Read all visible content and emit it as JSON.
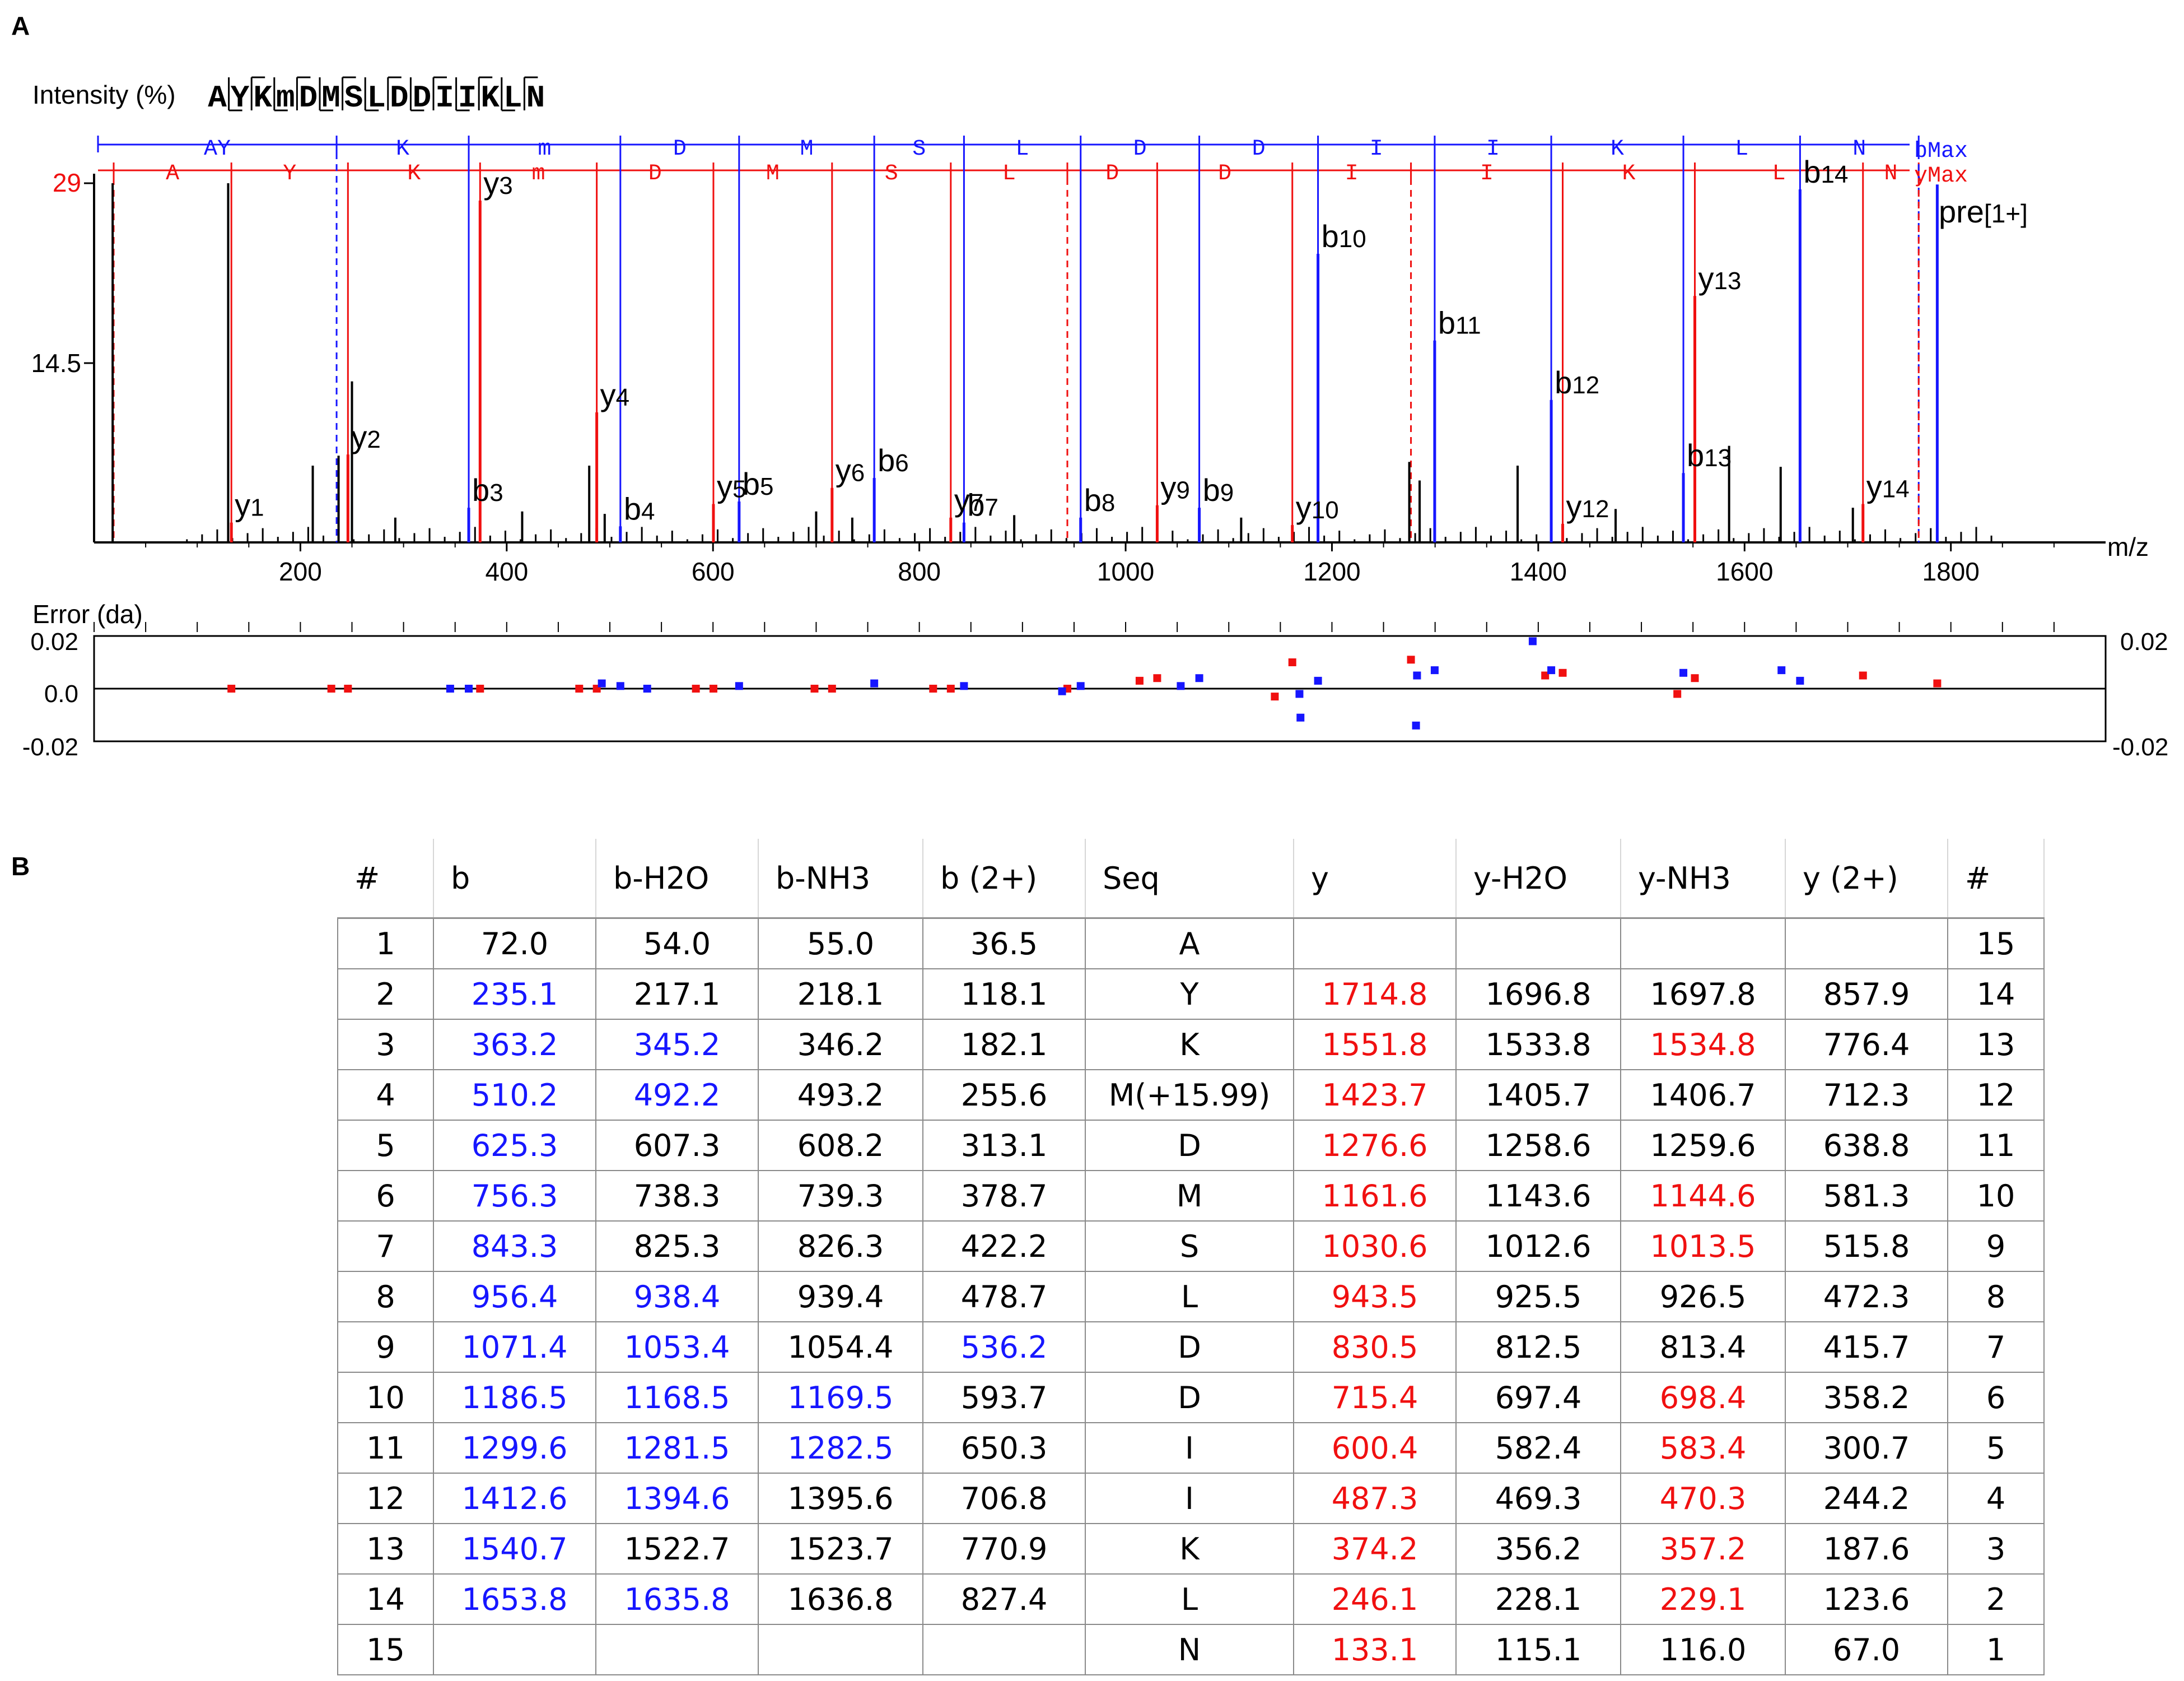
{
  "panel_labels": {
    "a": "A",
    "b": "B"
  },
  "spectrum": {
    "y_axis_title": "Intensity (%)",
    "y_ticks": [
      "29",
      "14.5"
    ],
    "x_axis_label": "m/z",
    "x_ticks": [
      "200",
      "400",
      "600",
      "800",
      "1000",
      "1200",
      "1400",
      "1600",
      "1800"
    ],
    "peptide_letters": [
      "A",
      "Y",
      "K",
      "m",
      "D",
      "M",
      "S",
      "L",
      "D",
      "D",
      "I",
      "I",
      "K",
      "L",
      "N"
    ],
    "b_ladder_label": "bMax",
    "y_ladder_label": "yMax",
    "b_ladder_residues": [
      "AY",
      "K",
      "m",
      "D",
      "M",
      "S",
      "L",
      "D",
      "D",
      "I",
      "I",
      "K",
      "L",
      "N"
    ],
    "y_ladder_residues": [
      "N",
      "L",
      "K",
      "I",
      "I",
      "D",
      "D",
      "L",
      "S",
      "M",
      "D",
      "m",
      "K",
      "Y",
      "A"
    ],
    "precursor_label": "pre",
    "precursor_charge": "[1+]",
    "colors": {
      "b_ion": "#1616ff",
      "y_ion": "#f01010",
      "unassigned": "#000000"
    }
  },
  "error_panel": {
    "title": "Error (da)",
    "y_ticks_left": [
      "0.02",
      "0.0",
      "-0.02"
    ],
    "y_ticks_right": [
      "0.02",
      "-0.02"
    ]
  },
  "chart_data": [
    {
      "type": "bar",
      "title": "",
      "xlabel": "m/z",
      "ylabel": "Intensity (%)",
      "xlim": [
        0,
        1950
      ],
      "ylim": [
        0,
        29
      ],
      "b_ion_positions": [
        235.1,
        363.2,
        510.2,
        625.3,
        756.3,
        843.3,
        956.4,
        1071.4,
        1186.5,
        1299.6,
        1412.6,
        1540.7,
        1653.8,
        1768.8
      ],
      "y_ion_positions": [
        1768.8,
        1714.8,
        1551.8,
        1423.7,
        1276.6,
        1161.6,
        1030.6,
        943.5,
        830.5,
        715.4,
        600.4,
        487.3,
        374.2,
        246.1,
        133.1,
        19.0
      ],
      "b_peaks": [
        {
          "label": "b",
          "sub": "3",
          "mz": 363.2,
          "intensity": 2.8
        },
        {
          "label": "b",
          "sub": "4",
          "mz": 510.2,
          "intensity": 1.3
        },
        {
          "label": "b",
          "sub": "5",
          "mz": 625.3,
          "intensity": 3.3
        },
        {
          "label": "b",
          "sub": "6",
          "mz": 756.3,
          "intensity": 5.2
        },
        {
          "label": "b",
          "sub": "7",
          "mz": 843.3,
          "intensity": 1.6
        },
        {
          "label": "b",
          "sub": "8",
          "mz": 956.4,
          "intensity": 2.0
        },
        {
          "label": "b",
          "sub": "9",
          "mz": 1071.4,
          "intensity": 2.8
        },
        {
          "label": "b",
          "sub": "10",
          "mz": 1186.5,
          "intensity": 23.3
        },
        {
          "label": "b",
          "sub": "11",
          "mz": 1299.6,
          "intensity": 16.3
        },
        {
          "label": "b",
          "sub": "12",
          "mz": 1412.6,
          "intensity": 11.5
        },
        {
          "label": "b",
          "sub": "13",
          "mz": 1540.7,
          "intensity": 5.6
        },
        {
          "label": "b",
          "sub": "14",
          "mz": 1653.8,
          "intensity": 28.5
        }
      ],
      "y_peaks": [
        {
          "label": "y",
          "sub": "1",
          "mz": 133.1,
          "intensity": 1.6
        },
        {
          "label": "y",
          "sub": "2",
          "mz": 246.1,
          "intensity": 7.1
        },
        {
          "label": "y",
          "sub": "3",
          "mz": 374.2,
          "intensity": 27.6
        },
        {
          "label": "y",
          "sub": "4",
          "mz": 487.3,
          "intensity": 10.5
        },
        {
          "label": "y",
          "sub": "5",
          "mz": 600.4,
          "intensity": 3.1
        },
        {
          "label": "y",
          "sub": "6",
          "mz": 715.4,
          "intensity": 4.4
        },
        {
          "label": "y",
          "sub": "7",
          "mz": 830.5,
          "intensity": 2.0
        },
        {
          "label": "y",
          "sub": "9",
          "mz": 1030.6,
          "intensity": 3.0
        },
        {
          "label": "y",
          "sub": "10",
          "mz": 1161.6,
          "intensity": 1.4
        },
        {
          "label": "y",
          "sub": "12",
          "mz": 1423.7,
          "intensity": 1.5
        },
        {
          "label": "y",
          "sub": "13",
          "mz": 1551.8,
          "intensity": 19.9
        },
        {
          "label": "y",
          "sub": "14",
          "mz": 1714.8,
          "intensity": 3.1
        }
      ],
      "precursor_peak": {
        "mz": 1786.8,
        "intensity": 28.9
      },
      "unassigned_peaks": [
        {
          "mz": 18,
          "intensity": 29
        },
        {
          "mz": 130,
          "intensity": 29
        },
        {
          "mz": 250,
          "intensity": 13.0
        },
        {
          "mz": 237,
          "intensity": 7.0
        },
        {
          "mz": 212,
          "intensity": 6.2
        },
        {
          "mz": 292,
          "intensity": 2.0
        },
        {
          "mz": 415,
          "intensity": 2.5
        },
        {
          "mz": 480,
          "intensity": 6.2
        },
        {
          "mz": 495,
          "intensity": 2.3
        },
        {
          "mz": 700,
          "intensity": 2.5
        },
        {
          "mz": 735,
          "intensity": 2.0
        },
        {
          "mz": 892,
          "intensity": 2.2
        },
        {
          "mz": 1112,
          "intensity": 2.0
        },
        {
          "mz": 1275,
          "intensity": 6.5
        },
        {
          "mz": 1285,
          "intensity": 5.0
        },
        {
          "mz": 1380,
          "intensity": 6.2
        },
        {
          "mz": 1475,
          "intensity": 2.7
        },
        {
          "mz": 1585,
          "intensity": 7.8
        },
        {
          "mz": 1635,
          "intensity": 6.1
        },
        {
          "mz": 1705,
          "intensity": 2.8
        }
      ]
    },
    {
      "type": "scatter",
      "title": "",
      "ylabel": "Error (da)",
      "xlim": [
        0,
        1950
      ],
      "ylim": [
        -0.02,
        0.02
      ],
      "series": [
        {
          "name": "",
          "color": "#f01010",
          "points": [
            [
              133.1,
              0.0
            ],
            [
              230,
              0.0
            ],
            [
              246.1,
              0.0
            ],
            [
              374.2,
              0.0
            ],
            [
              470.3,
              0.0
            ],
            [
              487.3,
              0.0
            ],
            [
              583.4,
              0.0
            ],
            [
              600.4,
              0.0
            ],
            [
              698.4,
              0.0
            ],
            [
              715.4,
              0.0
            ],
            [
              813.4,
              0.0
            ],
            [
              830.5,
              0.0
            ],
            [
              943.5,
              0.0
            ],
            [
              1013.5,
              0.003
            ],
            [
              1030.6,
              0.004
            ],
            [
              1144.6,
              -0.003
            ],
            [
              1161.6,
              0.01
            ],
            [
              1276.6,
              0.011
            ],
            [
              1406.7,
              0.005
            ],
            [
              1423.7,
              0.006
            ],
            [
              1534.8,
              -0.002
            ],
            [
              1551.8,
              0.004
            ],
            [
              1714.8,
              0.005
            ],
            [
              1786.8,
              0.002
            ]
          ]
        },
        {
          "name": "",
          "color": "#1616ff",
          "points": [
            [
              345.2,
              0.0
            ],
            [
              363.2,
              0.0
            ],
            [
              492.2,
              0.002
            ],
            [
              510.2,
              0.001
            ],
            [
              536.2,
              0.0
            ],
            [
              625.3,
              0.001
            ],
            [
              756.3,
              0.002
            ],
            [
              843.3,
              0.001
            ],
            [
              938.4,
              -0.001
            ],
            [
              956.4,
              0.001
            ],
            [
              1053.4,
              0.001
            ],
            [
              1071.4,
              0.004
            ],
            [
              1168.5,
              -0.002
            ],
            [
              1169.5,
              -0.011
            ],
            [
              1186.5,
              0.003
            ],
            [
              1281.5,
              -0.014
            ],
            [
              1282.5,
              0.005
            ],
            [
              1299.6,
              0.007
            ],
            [
              1394.6,
              0.018
            ],
            [
              1412.6,
              0.007
            ],
            [
              1540.7,
              0.006
            ],
            [
              1635.8,
              0.007
            ],
            [
              1653.8,
              0.003
            ]
          ]
        }
      ]
    },
    {
      "type": "table",
      "columns": [
        "#",
        "b",
        "b-H2O",
        "b-NH3",
        "b (2+)",
        "Seq",
        "y",
        "y-H2O",
        "y-NH3",
        "y (2+)",
        "#"
      ],
      "rows": [
        {
          "cells": [
            "1",
            "72.0",
            "54.0",
            "55.0",
            "36.5",
            "A",
            "",
            "",
            "",
            "",
            "15"
          ],
          "colors": [
            "k",
            "k",
            "k",
            "k",
            "k",
            "k",
            "k",
            "k",
            "k",
            "k",
            "k"
          ]
        },
        {
          "cells": [
            "2",
            "235.1",
            "217.1",
            "218.1",
            "118.1",
            "Y",
            "1714.8",
            "1696.8",
            "1697.8",
            "857.9",
            "14"
          ],
          "colors": [
            "k",
            "b",
            "k",
            "k",
            "k",
            "k",
            "r",
            "k",
            "k",
            "k",
            "k"
          ]
        },
        {
          "cells": [
            "3",
            "363.2",
            "345.2",
            "346.2",
            "182.1",
            "K",
            "1551.8",
            "1533.8",
            "1534.8",
            "776.4",
            "13"
          ],
          "colors": [
            "k",
            "b",
            "b",
            "k",
            "k",
            "k",
            "r",
            "k",
            "r",
            "k",
            "k"
          ]
        },
        {
          "cells": [
            "4",
            "510.2",
            "492.2",
            "493.2",
            "255.6",
            "M(+15.99)",
            "1423.7",
            "1405.7",
            "1406.7",
            "712.3",
            "12"
          ],
          "colors": [
            "k",
            "b",
            "b",
            "k",
            "k",
            "k",
            "r",
            "k",
            "k",
            "k",
            "k"
          ]
        },
        {
          "cells": [
            "5",
            "625.3",
            "607.3",
            "608.2",
            "313.1",
            "D",
            "1276.6",
            "1258.6",
            "1259.6",
            "638.8",
            "11"
          ],
          "colors": [
            "k",
            "b",
            "k",
            "k",
            "k",
            "k",
            "r",
            "k",
            "k",
            "k",
            "k"
          ]
        },
        {
          "cells": [
            "6",
            "756.3",
            "738.3",
            "739.3",
            "378.7",
            "M",
            "1161.6",
            "1143.6",
            "1144.6",
            "581.3",
            "10"
          ],
          "colors": [
            "k",
            "b",
            "k",
            "k",
            "k",
            "k",
            "r",
            "k",
            "r",
            "k",
            "k"
          ]
        },
        {
          "cells": [
            "7",
            "843.3",
            "825.3",
            "826.3",
            "422.2",
            "S",
            "1030.6",
            "1012.6",
            "1013.5",
            "515.8",
            "9"
          ],
          "colors": [
            "k",
            "b",
            "k",
            "k",
            "k",
            "k",
            "r",
            "k",
            "r",
            "k",
            "k"
          ]
        },
        {
          "cells": [
            "8",
            "956.4",
            "938.4",
            "939.4",
            "478.7",
            "L",
            "943.5",
            "925.5",
            "926.5",
            "472.3",
            "8"
          ],
          "colors": [
            "k",
            "b",
            "b",
            "k",
            "k",
            "k",
            "r",
            "k",
            "k",
            "k",
            "k"
          ]
        },
        {
          "cells": [
            "9",
            "1071.4",
            "1053.4",
            "1054.4",
            "536.2",
            "D",
            "830.5",
            "812.5",
            "813.4",
            "415.7",
            "7"
          ],
          "colors": [
            "k",
            "b",
            "b",
            "k",
            "b",
            "k",
            "r",
            "k",
            "k",
            "k",
            "k"
          ]
        },
        {
          "cells": [
            "10",
            "1186.5",
            "1168.5",
            "1169.5",
            "593.7",
            "D",
            "715.4",
            "697.4",
            "698.4",
            "358.2",
            "6"
          ],
          "colors": [
            "k",
            "b",
            "b",
            "b",
            "k",
            "k",
            "r",
            "k",
            "r",
            "k",
            "k"
          ]
        },
        {
          "cells": [
            "11",
            "1299.6",
            "1281.5",
            "1282.5",
            "650.3",
            "I",
            "600.4",
            "582.4",
            "583.4",
            "300.7",
            "5"
          ],
          "colors": [
            "k",
            "b",
            "b",
            "b",
            "k",
            "k",
            "r",
            "k",
            "r",
            "k",
            "k"
          ]
        },
        {
          "cells": [
            "12",
            "1412.6",
            "1394.6",
            "1395.6",
            "706.8",
            "I",
            "487.3",
            "469.3",
            "470.3",
            "244.2",
            "4"
          ],
          "colors": [
            "k",
            "b",
            "b",
            "k",
            "k",
            "k",
            "r",
            "k",
            "r",
            "k",
            "k"
          ]
        },
        {
          "cells": [
            "13",
            "1540.7",
            "1522.7",
            "1523.7",
            "770.9",
            "K",
            "374.2",
            "356.2",
            "357.2",
            "187.6",
            "3"
          ],
          "colors": [
            "k",
            "b",
            "k",
            "k",
            "k",
            "k",
            "r",
            "k",
            "r",
            "k",
            "k"
          ]
        },
        {
          "cells": [
            "14",
            "1653.8",
            "1635.8",
            "1636.8",
            "827.4",
            "L",
            "246.1",
            "228.1",
            "229.1",
            "123.6",
            "2"
          ],
          "colors": [
            "k",
            "b",
            "b",
            "k",
            "k",
            "k",
            "r",
            "k",
            "r",
            "k",
            "k"
          ]
        },
        {
          "cells": [
            "15",
            "",
            "",
            "",
            "",
            "N",
            "133.1",
            "115.1",
            "116.0",
            "67.0",
            "1"
          ],
          "colors": [
            "k",
            "k",
            "k",
            "k",
            "k",
            "k",
            "r",
            "k",
            "k",
            "k",
            "k"
          ]
        }
      ]
    }
  ]
}
